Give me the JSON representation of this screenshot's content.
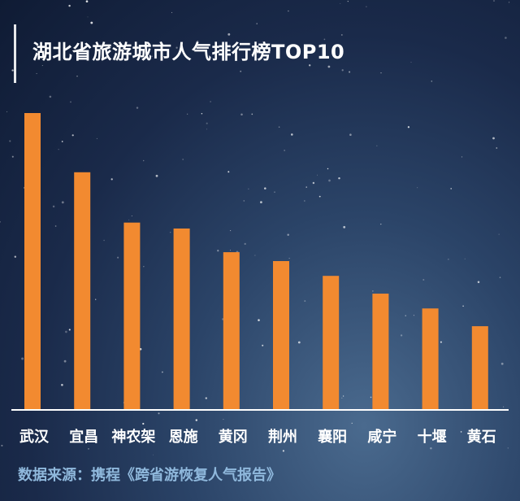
{
  "page": {
    "title": "湖北省旅游城市人气排行榜TOP10",
    "source": "数据来源：携程《跨省游恢复人气报告》"
  },
  "colors": {
    "bar": "#f28a30",
    "axis": "#ffffff",
    "label": "#ffffff",
    "source": "#8fb8dc"
  },
  "chart_data": {
    "type": "bar",
    "title": "湖北省旅游城市人气排行榜TOP10",
    "categories": [
      "武汉",
      "宜昌",
      "神农架",
      "恩施",
      "黄冈",
      "荆州",
      "襄阳",
      "咸宁",
      "十堰",
      "黄石"
    ],
    "values": [
      100,
      80,
      63,
      61,
      53,
      50,
      45,
      39,
      34,
      28
    ],
    "ylim": [
      0,
      100
    ],
    "grid": false,
    "legend": "none"
  }
}
